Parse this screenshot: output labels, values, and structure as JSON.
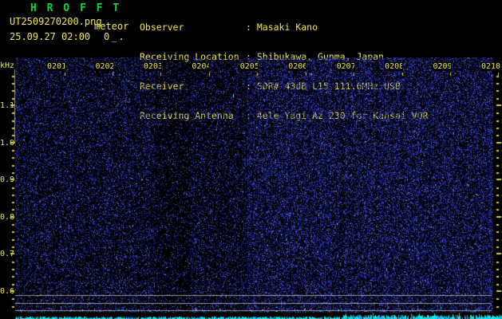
{
  "header": {
    "app_title": "H R O F F T",
    "filename": "UT2509270200.png",
    "mode_label": "meteor",
    "datetime": "25.09.27 02:00",
    "counter": "0_.",
    "info_rows": [
      {
        "label": "Observer",
        "sep": ": ",
        "value": "Masaki Kano"
      },
      {
        "label": "Receiving Location",
        "sep": ": ",
        "value": "Shibukawa, Gunma, Japan"
      },
      {
        "label": "Receiver",
        "sep": ": ",
        "value": "SDR# 43dB L15 111.6MHz USB"
      },
      {
        "label": "Receiving Antenna",
        "sep": ": ",
        "value": "4ele Yagi Az 230 for Kansai VOR"
      }
    ]
  },
  "axes": {
    "freq_unit": "kHz",
    "freq_ticks": [
      "1.1",
      "1.0",
      "0.9",
      "0.8",
      "0.7",
      "0.6"
    ],
    "time_ticks": [
      "0201",
      "0202",
      "0203",
      "0204",
      "0205",
      "0206",
      "0207",
      "0208",
      "0209",
      "0210"
    ]
  },
  "colors": {
    "title_green": "#0bd53c",
    "text_yellow": "#efe94a",
    "tick_yellow": "#d8d232",
    "grid_gray": "#9c9c9c",
    "noise_blue": "#2233bb",
    "trace_cyan": "#00e8e8",
    "background": "#000000"
  }
}
